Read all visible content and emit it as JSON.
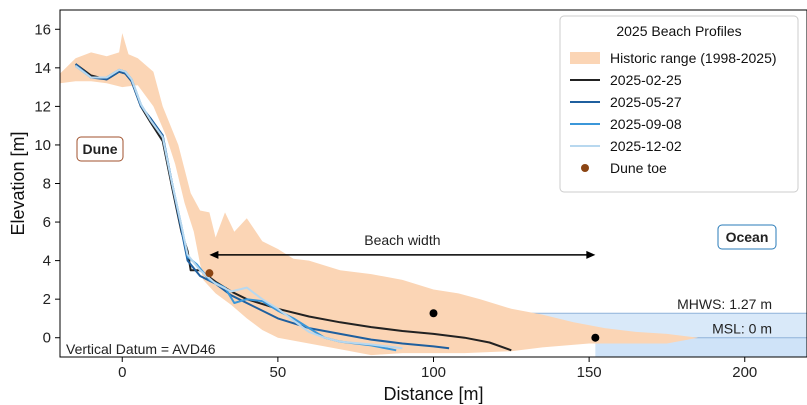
{
  "chart_data": {
    "type": "line",
    "title": "",
    "xlabel": "Distance [m]",
    "ylabel": "Elevation [m]",
    "xlim": [
      -20,
      220
    ],
    "ylim": [
      -1,
      17
    ],
    "xticks": [
      0,
      50,
      100,
      150,
      200
    ],
    "yticks": [
      0,
      2,
      4,
      6,
      8,
      10,
      12,
      14,
      16
    ],
    "grid": false,
    "legend": {
      "title": "2025 Beach Profiles",
      "placement": "top-right",
      "entries": [
        {
          "label": "Historic range (1998-2025)",
          "kind": "patch",
          "color": "#fbd5b5"
        },
        {
          "label": "2025-02-25",
          "kind": "line",
          "color": "#222222"
        },
        {
          "label": "2025-05-27",
          "kind": "line",
          "color": "#1f5f9e"
        },
        {
          "label": "2025-09-08",
          "kind": "line",
          "color": "#3b97d9"
        },
        {
          "label": "2025-12-02",
          "kind": "line",
          "color": "#b8d8ef"
        },
        {
          "label": "Dune toe",
          "kind": "marker",
          "color": "#8b4513"
        }
      ]
    },
    "historic_range": {
      "upper": [
        [
          -20,
          13.7
        ],
        [
          -15,
          14.5
        ],
        [
          -10,
          14.8
        ],
        [
          -5,
          14.6
        ],
        [
          -1,
          14.8
        ],
        [
          0,
          15.8
        ],
        [
          2,
          14.7
        ],
        [
          5,
          14.5
        ],
        [
          10,
          13.8
        ],
        [
          13,
          12.0
        ],
        [
          18,
          10.0
        ],
        [
          22,
          7.5
        ],
        [
          25,
          6.6
        ],
        [
          28,
          6.5
        ],
        [
          30,
          5.2
        ],
        [
          33,
          6.5
        ],
        [
          36,
          5.5
        ],
        [
          40,
          6.2
        ],
        [
          45,
          5.0
        ],
        [
          50,
          4.6
        ],
        [
          55,
          4.1
        ],
        [
          60,
          4.0
        ],
        [
          70,
          3.5
        ],
        [
          80,
          3.3
        ],
        [
          90,
          3.0
        ],
        [
          100,
          2.5
        ],
        [
          108,
          2.3
        ],
        [
          115,
          2.0
        ],
        [
          125,
          1.5
        ],
        [
          135,
          1.2
        ],
        [
          145,
          0.8
        ],
        [
          155,
          0.5
        ],
        [
          165,
          0.3
        ],
        [
          175,
          0.2
        ],
        [
          185,
          0.0
        ]
      ],
      "lower": [
        [
          185,
          0.0
        ],
        [
          175,
          -0.3
        ],
        [
          165,
          -0.3
        ],
        [
          150,
          -0.3
        ],
        [
          135,
          -0.5
        ],
        [
          125,
          -0.7
        ],
        [
          110,
          -0.8
        ],
        [
          100,
          -0.8
        ],
        [
          90,
          -0.8
        ],
        [
          80,
          -0.9
        ],
        [
          70,
          -0.6
        ],
        [
          60,
          -0.3
        ],
        [
          50,
          0.0
        ],
        [
          45,
          0.4
        ],
        [
          40,
          1.0
        ],
        [
          35,
          1.7
        ],
        [
          30,
          2.3
        ],
        [
          26,
          3.0
        ],
        [
          23,
          5.5
        ],
        [
          20,
          7.0
        ],
        [
          17,
          9.0
        ],
        [
          14,
          10.5
        ],
        [
          10,
          12.0
        ],
        [
          5,
          13.1
        ],
        [
          0,
          13.0
        ],
        [
          -5,
          13.2
        ],
        [
          -10,
          13.3
        ],
        [
          -15,
          13.3
        ],
        [
          -20,
          13.2
        ]
      ]
    },
    "series": [
      {
        "name": "2025-02-25",
        "color": "#222222",
        "points": [
          [
            -15,
            14.2
          ],
          [
            -10,
            13.6
          ],
          [
            -5,
            13.4
          ],
          [
            -1,
            13.8
          ],
          [
            1,
            13.7
          ],
          [
            3,
            13.3
          ],
          [
            6,
            12.0
          ],
          [
            9,
            11.2
          ],
          [
            13,
            10.2
          ],
          [
            16,
            7.8
          ],
          [
            19,
            5.5
          ],
          [
            21,
            4.5
          ],
          [
            22,
            3.5
          ],
          [
            25,
            3.5
          ],
          [
            30,
            2.9
          ],
          [
            35,
            2.4
          ],
          [
            40,
            2.0
          ],
          [
            50,
            1.5
          ],
          [
            60,
            1.1
          ],
          [
            70,
            0.8
          ],
          [
            80,
            0.55
          ],
          [
            90,
            0.35
          ],
          [
            100,
            0.2
          ],
          [
            110,
            0.0
          ],
          [
            118,
            -0.25
          ],
          [
            125,
            -0.65
          ]
        ]
      },
      {
        "name": "2025-05-27",
        "color": "#1f5f9e",
        "points": [
          [
            -15,
            14.2
          ],
          [
            -10,
            13.5
          ],
          [
            -5,
            13.4
          ],
          [
            -1,
            13.8
          ],
          [
            1,
            13.7
          ],
          [
            3,
            13.3
          ],
          [
            6,
            12.0
          ],
          [
            9,
            11.4
          ],
          [
            13,
            10.5
          ],
          [
            16,
            8.0
          ],
          [
            19,
            5.6
          ],
          [
            21,
            4.0
          ],
          [
            25,
            3.2
          ],
          [
            30,
            2.8
          ],
          [
            35,
            2.2
          ],
          [
            40,
            1.8
          ],
          [
            50,
            1.0
          ],
          [
            60,
            0.5
          ],
          [
            70,
            0.2
          ],
          [
            80,
            -0.1
          ],
          [
            90,
            -0.3
          ],
          [
            100,
            -0.45
          ],
          [
            105,
            -0.55
          ]
        ]
      },
      {
        "name": "2025-09-08",
        "color": "#3b97d9",
        "points": [
          [
            -15,
            14.1
          ],
          [
            -10,
            13.5
          ],
          [
            -5,
            13.5
          ],
          [
            -1,
            13.9
          ],
          [
            1,
            13.8
          ],
          [
            3,
            13.4
          ],
          [
            6,
            12.1
          ],
          [
            9,
            11.3
          ],
          [
            13,
            10.4
          ],
          [
            16,
            8.0
          ],
          [
            19,
            5.8
          ],
          [
            21,
            4.2
          ],
          [
            24,
            3.8
          ],
          [
            28,
            3.0
          ],
          [
            33,
            2.6
          ],
          [
            36,
            1.8
          ],
          [
            40,
            2.0
          ],
          [
            45,
            1.9
          ],
          [
            50,
            1.4
          ],
          [
            55,
            1.0
          ],
          [
            60,
            0.5
          ],
          [
            65,
            0.0
          ],
          [
            70,
            -0.2
          ],
          [
            80,
            -0.4
          ],
          [
            88,
            -0.65
          ]
        ]
      },
      {
        "name": "2025-12-02",
        "color": "#b8d8ef",
        "points": [
          [
            -15,
            14.1
          ],
          [
            -10,
            13.5
          ],
          [
            -5,
            13.5
          ],
          [
            -1,
            13.9
          ],
          [
            1,
            13.8
          ],
          [
            3,
            13.4
          ],
          [
            6,
            12.1
          ],
          [
            9,
            11.3
          ],
          [
            13,
            10.4
          ],
          [
            16,
            8.0
          ],
          [
            19,
            5.8
          ],
          [
            21,
            4.3
          ],
          [
            25,
            3.5
          ],
          [
            30,
            2.8
          ],
          [
            35,
            2.4
          ],
          [
            40,
            2.6
          ],
          [
            45,
            2.0
          ],
          [
            50,
            1.5
          ],
          [
            55,
            0.9
          ],
          [
            60,
            0.3
          ],
          [
            65,
            0.0
          ],
          [
            70,
            -0.2
          ],
          [
            80,
            -0.35
          ],
          [
            90,
            -0.55
          ]
        ]
      }
    ],
    "markers": [
      {
        "label": "Dune toe",
        "x": 28,
        "y": 3.35,
        "color": "#8b4513"
      },
      {
        "label": "MHWS point",
        "x": 100,
        "y": 1.27,
        "color": "#000000"
      },
      {
        "label": "MSL point",
        "x": 152,
        "y": 0.0,
        "color": "#000000"
      }
    ],
    "water_levels": [
      {
        "label": "MHWS: 1.27 m",
        "y": 1.27,
        "x_start": 100
      },
      {
        "label": "MSL: 0 m",
        "y": 0.0,
        "x_start": 152
      }
    ],
    "beach_width": {
      "label": "Beach width",
      "x_start": 28,
      "x_end": 152,
      "y": 4.3
    },
    "annotations": {
      "dune": "Dune",
      "ocean": "Ocean",
      "datum": "Vertical Datum = AVD46"
    },
    "colors": {
      "historic_fill": "#fbd5b5",
      "water_fill": "#cfe3f8",
      "water_line": "#8fb3d9",
      "dune_label": "#a0522d",
      "ocean_label": "#2a7bb8"
    }
  }
}
